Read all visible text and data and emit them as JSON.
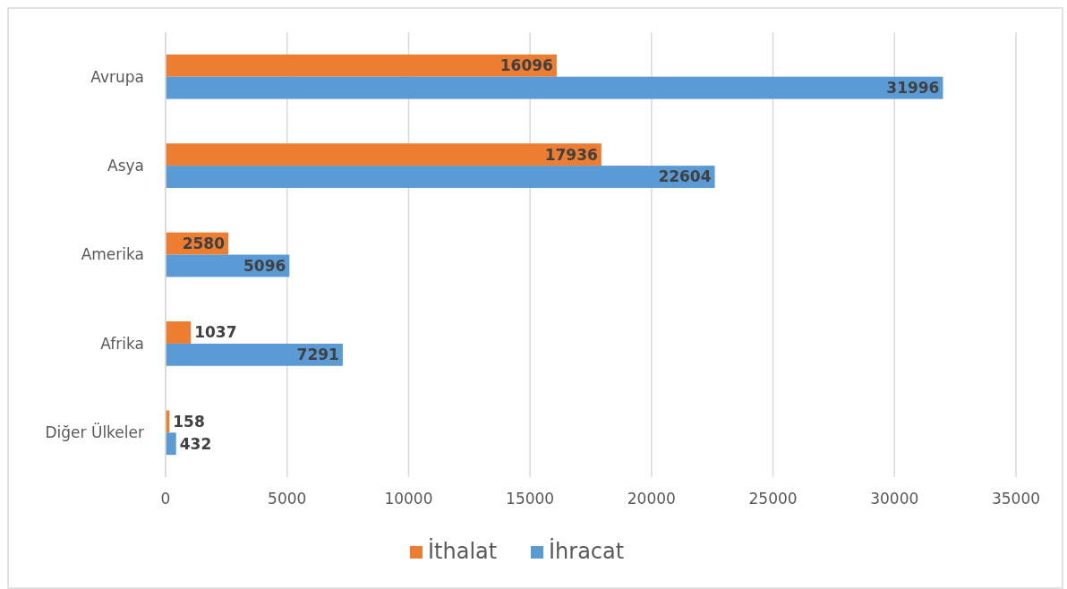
{
  "chart_data": {
    "type": "bar",
    "orientation": "horizontal",
    "categories": [
      "Avrupa",
      "Asya",
      "Amerika",
      "Afrika",
      "Diğer Ülkeler"
    ],
    "series": [
      {
        "name": "İthalat",
        "color": "#ed7d31",
        "values": [
          16096,
          17936,
          2580,
          1037,
          158
        ]
      },
      {
        "name": "İhracat",
        "color": "#5b9bd5",
        "values": [
          31996,
          22604,
          5096,
          7291,
          432
        ]
      }
    ],
    "xlim": [
      0,
      35000
    ],
    "xticks": [
      0,
      5000,
      10000,
      15000,
      20000,
      25000,
      30000,
      35000
    ],
    "grid": "x",
    "legend": "bottom",
    "data_labels": true
  }
}
